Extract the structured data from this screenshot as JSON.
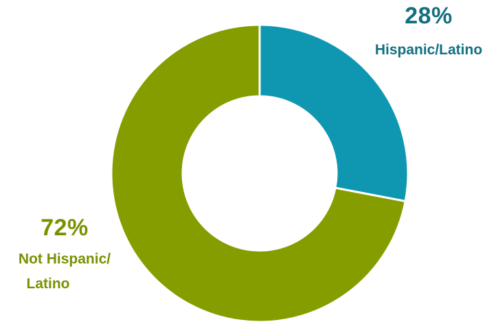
{
  "chart_data": {
    "type": "pie",
    "variant": "donut",
    "title": "",
    "slices": [
      {
        "label": "Hispanic/Latino",
        "value": 28,
        "display_value": "28%",
        "label_lines": [
          "Hispanic/Latino"
        ],
        "color": "#0f97b2",
        "text_color": "#12707f"
      },
      {
        "label": "Not Hispanic/Latino",
        "value": 72,
        "display_value": "72%",
        "label_lines": [
          "Not Hispanic/",
          "Latino"
        ],
        "color": "#869d00",
        "text_color": "#7a9000"
      }
    ],
    "start_angle": "12 o'clock",
    "direction": "clockwise",
    "legend": "none"
  }
}
